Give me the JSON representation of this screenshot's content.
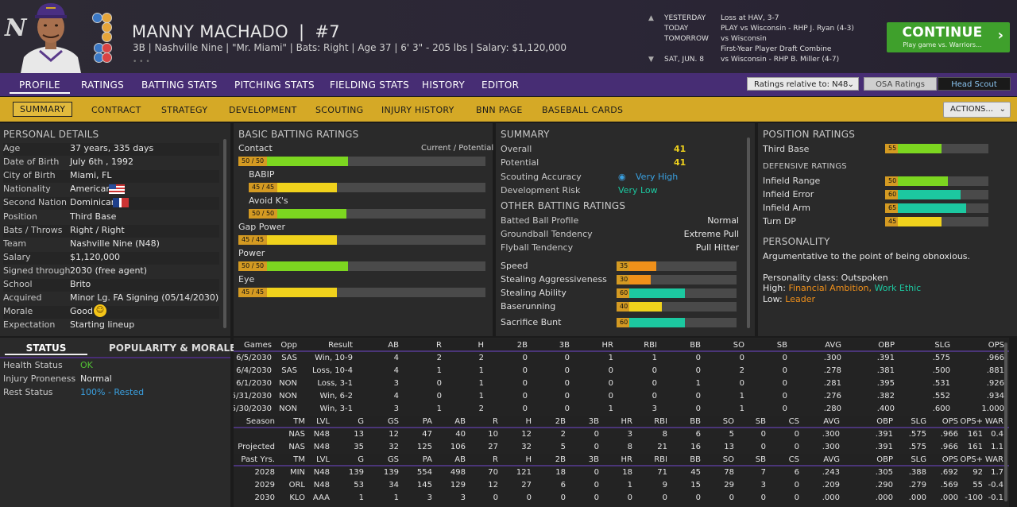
{
  "header": {
    "logo_letter": "N",
    "name": "MANNY MACHADO",
    "number_sep": "|",
    "number": "#7",
    "subline": "3B | Nashville Nine | \"Mr. Miami\" | Bats: Right | Age 37 | 6' 3\" - 205 lbs | Salary: $1,120,000",
    "dots": "• • •"
  },
  "schedule": [
    {
      "label": "YESTERDAY",
      "value": "Loss at HAV, 3-7"
    },
    {
      "label": "TODAY",
      "value": "PLAY vs Wisconsin - RHP J. Ryan (4-3)"
    },
    {
      "label": "TOMORROW",
      "value": "vs Wisconsin"
    },
    {
      "label": "",
      "value": "First-Year Player Draft Combine"
    },
    {
      "label": "SAT, JUN. 8",
      "value": "vs Wisconsin - RHP B. Miller (4-7)"
    }
  ],
  "continue": {
    "label": "CONTINUE",
    "sub": "Play game vs. Warriors...",
    "chev": "›"
  },
  "nav1": {
    "tabs": [
      "PROFILE",
      "RATINGS",
      "BATTING STATS",
      "PITCHING STATS",
      "FIELDING STATS",
      "HISTORY",
      "EDITOR"
    ],
    "ratings_select": "Ratings relative to: N48",
    "osa": "OSA Ratings",
    "scout": "Head Scout"
  },
  "nav2": {
    "tabs": [
      "SUMMARY",
      "CONTRACT",
      "STRATEGY",
      "DEVELOPMENT",
      "SCOUTING",
      "INJURY HISTORY",
      "BNN PAGE",
      "BASEBALL CARDS"
    ],
    "actions": "ACTIONS..."
  },
  "personal": {
    "title": "PERSONAL DETAILS",
    "rows": [
      {
        "k": "Age",
        "v": "37 years, 335 days"
      },
      {
        "k": "Date of Birth",
        "v": "July 6th , 1992"
      },
      {
        "k": "City of Birth",
        "v": "Miami, FL"
      },
      {
        "k": "Nationality",
        "v": "American"
      },
      {
        "k": "Second Nation",
        "v": "Dominican"
      },
      {
        "k": "Position",
        "v": "Third Base"
      },
      {
        "k": "Bats / Throws",
        "v": "Right / Right"
      },
      {
        "k": "Team",
        "v": "Nashville Nine (N48)"
      },
      {
        "k": "Salary",
        "v": "$1,120,000"
      },
      {
        "k": "Signed through",
        "v": "2030 (free agent)"
      },
      {
        "k": "School",
        "v": "Brito"
      },
      {
        "k": "Acquired",
        "v": "Minor Lg. FA Signing (05/14/2030)"
      },
      {
        "k": "Morale",
        "v": "Good"
      },
      {
        "k": "Expectation",
        "v": "Starting lineup"
      }
    ]
  },
  "status": {
    "tab_status": "STATUS",
    "tab_pop": "POPULARITY & MORALE",
    "rows": [
      {
        "k": "Health Status",
        "v": "OK",
        "color": "#52c234"
      },
      {
        "k": "Injury Proneness",
        "v": "Normal",
        "color": "#e6e6e6"
      },
      {
        "k": "Rest Status",
        "v": "100% - Rested",
        "color": "#3aa0e0"
      }
    ]
  },
  "batting": {
    "title": "BASIC BATTING RATINGS",
    "col": "Current / Potential",
    "rows": [
      {
        "name": "Contact",
        "text": "50 / 50",
        "value": 50,
        "color": "#7cd620",
        "bold": false
      },
      {
        "name": "BABIP",
        "text": "45 / 45",
        "value": 45,
        "color": "#f0d21c",
        "sub": true
      },
      {
        "name": "Avoid K's",
        "text": "50 / 50",
        "value": 50,
        "color": "#7cd620",
        "sub": true
      },
      {
        "name": "Gap Power",
        "text": "45 / 45",
        "value": 45,
        "color": "#f0d21c"
      },
      {
        "name": "Power",
        "text": "50 / 50",
        "value": 50,
        "color": "#7cd620"
      },
      {
        "name": "Eye",
        "text": "45 / 45",
        "value": 45,
        "color": "#f0d21c"
      }
    ]
  },
  "summary": {
    "title": "SUMMARY",
    "overall_k": "Overall",
    "overall_v": "41",
    "potential_k": "Potential",
    "potential_v": "41",
    "accuracy_k": "Scouting Accuracy",
    "accuracy_v": "Very High",
    "risk_k": "Development Risk",
    "risk_v": "Very Low",
    "other_title": "OTHER BATTING RATINGS",
    "text_rows": [
      {
        "k": "Batted Ball Profile",
        "v": "Normal"
      },
      {
        "k": "Groundball Tendency",
        "v": "Extreme Pull"
      },
      {
        "k": "Flyball Tendency",
        "v": "Pull Hitter"
      }
    ],
    "bar_rows": [
      {
        "k": "Speed",
        "text": "35",
        "value": 35,
        "color": "#f0901a"
      },
      {
        "k": "Stealing Aggressiveness",
        "text": "30",
        "value": 30,
        "color": "#f0901a"
      },
      {
        "k": "Stealing Ability",
        "text": "60",
        "value": 60,
        "color": "#1cc8a0"
      },
      {
        "k": "Baserunning",
        "text": "40",
        "value": 40,
        "color": "#f0d21c"
      },
      {
        "k": "Sacrifice Bunt",
        "text": "60",
        "value": 60,
        "color": "#1cc8a0"
      }
    ]
  },
  "position": {
    "title": "POSITION RATINGS",
    "main": {
      "k": "Third Base",
      "text": "55",
      "value": 55,
      "color": "#7cd620"
    },
    "def_title": "DEFENSIVE RATINGS",
    "rows": [
      {
        "k": "Infield Range",
        "text": "50",
        "value": 50,
        "color": "#7cd620"
      },
      {
        "k": "Infield Error",
        "text": "60",
        "value": 60,
        "color": "#1cc8a0"
      },
      {
        "k": "Infield Arm",
        "text": "65",
        "value": 65,
        "color": "#1cc8a0"
      },
      {
        "k": "Turn DP",
        "text": "45",
        "value": 45,
        "color": "#f0d21c"
      }
    ],
    "pers_title": "PERSONALITY",
    "pers_desc": "Argumentative to the point of being obnoxious.",
    "pers_class": "Personality class: Outspoken",
    "high_k": "High:",
    "high_1": "Financial Ambition,",
    "high_2": "Work Ethic",
    "low_k": "Low:",
    "low_1": "Leader"
  },
  "games": {
    "head": [
      "Games",
      "Opp",
      "Result",
      "AB",
      "R",
      "H",
      "2B",
      "3B",
      "HR",
      "RBI",
      "BB",
      "SO",
      "SB",
      "AVG",
      "OBP",
      "SLG",
      "OPS"
    ],
    "rows": [
      [
        "6/5/2030",
        "SAS",
        "Win, 10-9",
        "4",
        "2",
        "2",
        "0",
        "0",
        "1",
        "1",
        "0",
        "0",
        "0",
        ".300",
        ".391",
        ".575",
        ".966"
      ],
      [
        "6/4/2030",
        "SAS",
        "Loss, 10-4",
        "4",
        "1",
        "1",
        "0",
        "0",
        "0",
        "0",
        "0",
        "2",
        "0",
        ".278",
        ".381",
        ".500",
        ".881"
      ],
      [
        "6/1/2030",
        "NON",
        "Loss, 3-1",
        "3",
        "0",
        "1",
        "0",
        "0",
        "0",
        "0",
        "1",
        "0",
        "0",
        ".281",
        ".395",
        ".531",
        ".926"
      ],
      [
        "5/31/2030",
        "NON",
        "Win, 6-2",
        "4",
        "0",
        "1",
        "0",
        "0",
        "0",
        "0",
        "0",
        "1",
        "0",
        ".276",
        ".382",
        ".552",
        ".934"
      ],
      [
        "5/30/2030",
        "NON",
        "Win, 3-1",
        "3",
        "1",
        "2",
        "0",
        "0",
        "1",
        "3",
        "0",
        "1",
        "0",
        ".280",
        ".400",
        ".600",
        "1.000"
      ]
    ]
  },
  "season": {
    "head": [
      "Season",
      "TM",
      "LVL",
      "G",
      "GS",
      "PA",
      "AB",
      "R",
      "H",
      "2B",
      "3B",
      "HR",
      "RBI",
      "BB",
      "SO",
      "SB",
      "CS",
      "AVG",
      "OBP",
      "SLG",
      "OPS",
      "OPS+",
      "WAR"
    ],
    "rows": [
      [
        "",
        "NAS",
        "N48",
        "13",
        "12",
        "47",
        "40",
        "10",
        "12",
        "2",
        "0",
        "3",
        "8",
        "6",
        "5",
        "0",
        "0",
        ".300",
        ".391",
        ".575",
        ".966",
        "161",
        "0.4"
      ],
      [
        "Projected",
        "NAS",
        "N48",
        "35",
        "32",
        "125",
        "106",
        "27",
        "32",
        "5",
        "0",
        "8",
        "21",
        "16",
        "13",
        "0",
        "0",
        ".300",
        ".391",
        ".575",
        ".966",
        "161",
        "1.1"
      ]
    ]
  },
  "past": {
    "head": [
      "Past Yrs.",
      "TM",
      "LVL",
      "G",
      "GS",
      "PA",
      "AB",
      "R",
      "H",
      "2B",
      "3B",
      "HR",
      "RBI",
      "BB",
      "SO",
      "SB",
      "CS",
      "AVG",
      "OBP",
      "SLG",
      "OPS",
      "OPS+",
      "WAR"
    ],
    "rows": [
      [
        "2028",
        "MIN",
        "N48",
        "139",
        "139",
        "554",
        "498",
        "70",
        "121",
        "18",
        "0",
        "18",
        "71",
        "45",
        "78",
        "7",
        "6",
        ".243",
        ".305",
        ".388",
        ".692",
        "92",
        "1.7"
      ],
      [
        "2029",
        "ORL",
        "N48",
        "53",
        "34",
        "145",
        "129",
        "12",
        "27",
        "6",
        "0",
        "1",
        "9",
        "15",
        "29",
        "3",
        "0",
        ".209",
        ".290",
        ".279",
        ".569",
        "55",
        "-0.4"
      ],
      [
        "2030",
        "KLO",
        "AAA",
        "1",
        "1",
        "3",
        "3",
        "0",
        "0",
        "0",
        "0",
        "0",
        "0",
        "0",
        "0",
        "0",
        "0",
        ".000",
        ".000",
        ".000",
        ".000",
        "-100",
        "-0.1"
      ]
    ]
  },
  "colors": {
    "purple": "#472d74",
    "gold": "#d5a926",
    "green": "#3fa02c"
  }
}
